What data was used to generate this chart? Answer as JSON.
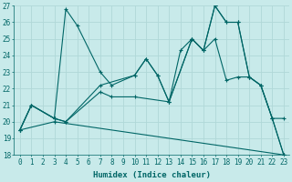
{
  "xlabel": "Humidex (Indice chaleur)",
  "bg_color": "#c8eaea",
  "grid_color": "#b0d8d8",
  "line_color": "#006666",
  "xlim": [
    -0.5,
    23.5
  ],
  "ylim": [
    18,
    27
  ],
  "xticks": [
    0,
    1,
    2,
    3,
    4,
    5,
    6,
    7,
    8,
    9,
    10,
    11,
    12,
    13,
    14,
    15,
    16,
    17,
    18,
    19,
    20,
    21,
    22,
    23
  ],
  "yticks": [
    18,
    19,
    20,
    21,
    22,
    23,
    24,
    25,
    26,
    27
  ],
  "series": [
    {
      "x": [
        0,
        1,
        3,
        4,
        5,
        7,
        8,
        10,
        11,
        12,
        13,
        15,
        16,
        17,
        18,
        19,
        20,
        21,
        22,
        23
      ],
      "y": [
        19.5,
        21.0,
        20.2,
        26.8,
        25.8,
        23.0,
        22.2,
        22.8,
        23.8,
        22.8,
        21.2,
        25.0,
        24.3,
        27.0,
        26.0,
        26.0,
        22.7,
        22.2,
        20.2,
        18.0
      ]
    },
    {
      "x": [
        0,
        1,
        3,
        4,
        7,
        10,
        11,
        12,
        13,
        15,
        16,
        17,
        18,
        19,
        20,
        21,
        22,
        23
      ],
      "y": [
        19.5,
        21.0,
        20.2,
        20.0,
        22.2,
        22.8,
        23.8,
        22.8,
        21.2,
        25.0,
        24.3,
        27.0,
        26.0,
        26.0,
        22.7,
        22.2,
        20.2,
        18.0
      ]
    },
    {
      "x": [
        0,
        1,
        3,
        4,
        7,
        8,
        10,
        13,
        14,
        15,
        16,
        17,
        18,
        19,
        20,
        21,
        22,
        23
      ],
      "y": [
        19.5,
        21.0,
        20.2,
        20.0,
        21.8,
        21.5,
        21.5,
        21.2,
        24.3,
        25.0,
        24.3,
        25.0,
        22.5,
        22.7,
        22.7,
        22.2,
        20.2,
        20.2
      ]
    },
    {
      "x": [
        0,
        3,
        23
      ],
      "y": [
        19.5,
        20.0,
        18.0
      ]
    }
  ]
}
